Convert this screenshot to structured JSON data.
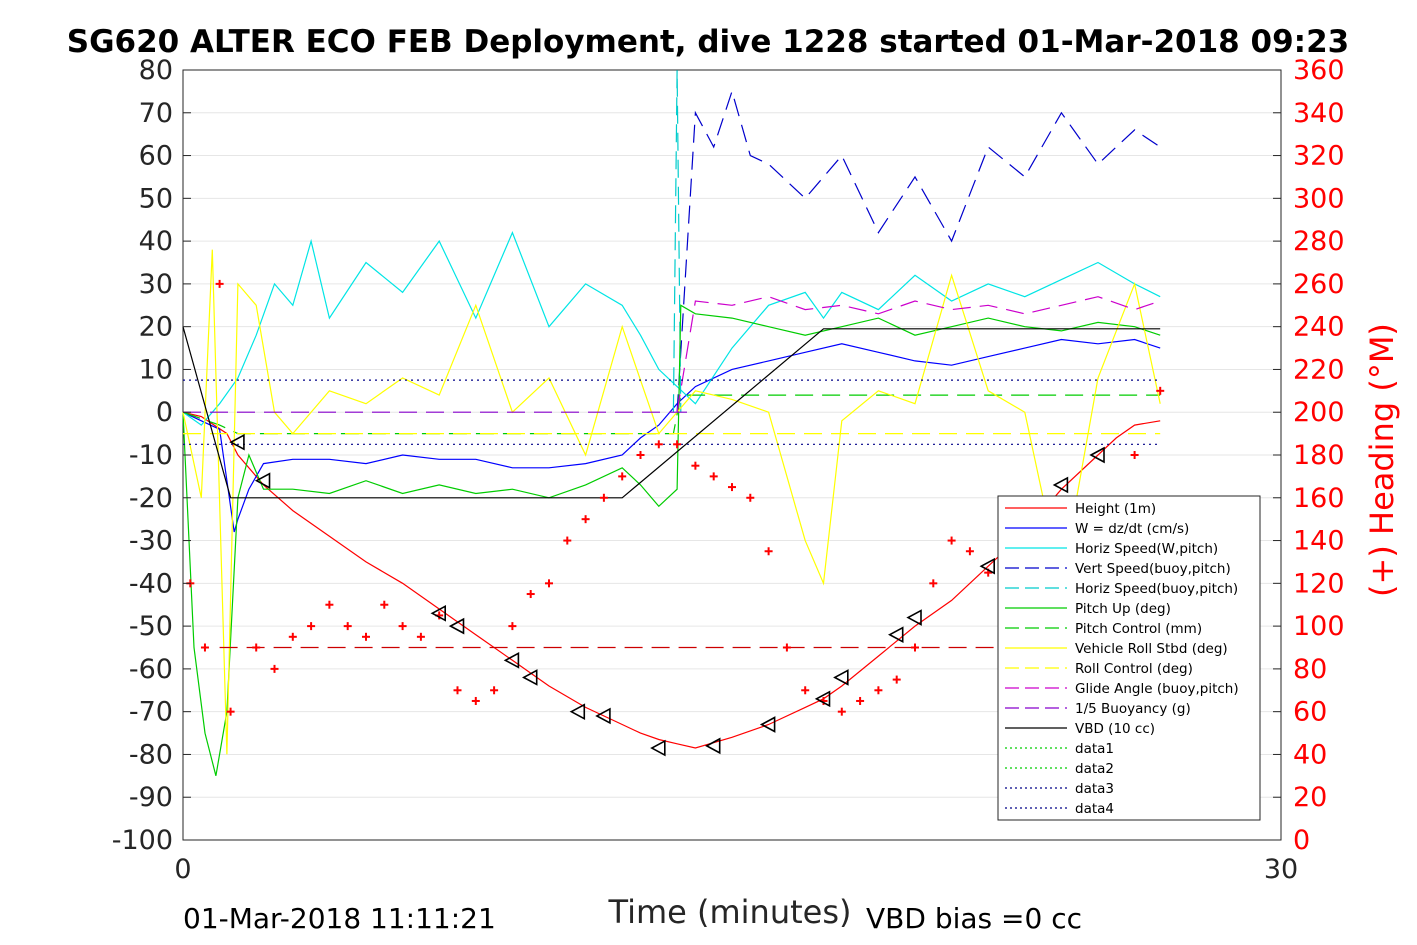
{
  "chart_data": {
    "type": "line",
    "title": "SG620 ALTER ECO FEB Deployment, dive 1228 started 01-Mar-2018 09:23",
    "xlabel": "Time (minutes)",
    "ylabel": "",
    "ylabel_right": "(+) Heading (°M)",
    "xlim": [
      0,
      30
    ],
    "ylim": [
      -100,
      80
    ],
    "ylim_right": [
      0,
      360
    ],
    "x_ticks": [
      "0",
      "30"
    ],
    "y_ticks": [
      "80",
      "70",
      "60",
      "50",
      "40",
      "30",
      "20",
      "10",
      "0",
      "-10",
      "-20",
      "-30",
      "-40",
      "-50",
      "-60",
      "-70",
      "-80",
      "-90",
      "-100"
    ],
    "y_ticks_right": [
      "360",
      "340",
      "320",
      "300",
      "280",
      "260",
      "240",
      "220",
      "200",
      "180",
      "160",
      "140",
      "120",
      "100",
      "80",
      "60",
      "40",
      "20",
      "0"
    ],
    "grid": true,
    "legend_position": "lower-right",
    "footer_left": "01-Mar-2018 11:11:21",
    "footer_right": "VBD bias =0 cc",
    "series": [
      {
        "name": "Height (1m)",
        "color": "#ff0000",
        "style": "solid",
        "x": [
          0,
          0.5,
          1.2,
          1.5,
          2.2,
          3,
          4,
          5,
          6,
          7,
          8,
          9,
          10,
          11,
          12,
          12.5,
          13,
          13.5,
          14,
          15,
          16,
          17,
          17.5,
          18,
          19,
          20,
          21,
          22,
          23,
          24,
          25,
          25.5,
          26,
          26.7
        ],
        "y": [
          0,
          -1,
          -5,
          -10,
          -17,
          -23,
          -29,
          -35,
          -40,
          -46,
          -52,
          -58,
          -64,
          -69,
          -73,
          -75,
          -76.5,
          -77.5,
          -78.5,
          -76,
          -73,
          -69,
          -67,
          -64,
          -57,
          -50,
          -44,
          -36,
          -28,
          -18,
          -10,
          -6,
          -3,
          -2
        ]
      },
      {
        "name": "W = dz/dt (cm/s)",
        "color": "#0000ff",
        "style": "solid",
        "x": [
          0,
          0.5,
          1,
          1.4,
          1.5,
          1.8,
          2.2,
          3,
          4,
          5,
          6,
          7,
          8,
          9,
          10,
          11,
          12,
          12.5,
          13,
          13.5,
          14,
          15,
          16,
          17,
          18,
          19,
          20,
          21,
          22,
          23,
          24,
          25,
          26,
          26.7
        ],
        "y": [
          0,
          -2,
          -4,
          -28,
          -25,
          -18,
          -12,
          -11,
          -11,
          -12,
          -10,
          -11,
          -11,
          -13,
          -13,
          -12,
          -10,
          -6,
          -3,
          2,
          6,
          10,
          12,
          14,
          16,
          14,
          12,
          11,
          13,
          15,
          17,
          16,
          17,
          15
        ]
      },
      {
        "name": "Horiz Speed(W,pitch)",
        "color": "#00e5e5",
        "style": "solid",
        "x": [
          0,
          0.5,
          1,
          1.5,
          2,
          2.5,
          3,
          3.5,
          4,
          5,
          6,
          7,
          8,
          9,
          10,
          11,
          12,
          12.5,
          13,
          13.5,
          14,
          15,
          16,
          17,
          17.5,
          18,
          19,
          20,
          21,
          22,
          23,
          24,
          25,
          26,
          26.7
        ],
        "y": [
          0,
          -3,
          2,
          8,
          18,
          30,
          25,
          40,
          22,
          35,
          28,
          40,
          22,
          42,
          20,
          30,
          25,
          18,
          10,
          6,
          2,
          15,
          25,
          28,
          22,
          28,
          24,
          32,
          26,
          30,
          27,
          31,
          35,
          30,
          27
        ]
      },
      {
        "name": "Vert Speed(buoy,pitch)",
        "color": "#0000cc",
        "style": "dashed",
        "x": [
          13.5,
          14,
          14.5,
          15,
          15.5,
          16,
          17,
          18,
          19,
          20,
          21,
          22,
          23,
          24,
          25,
          26,
          26.7
        ],
        "y": [
          0,
          70,
          62,
          75,
          60,
          58,
          50,
          60,
          42,
          55,
          40,
          62,
          55,
          70,
          58,
          66,
          62
        ]
      },
      {
        "name": "Horiz Speed(buoy,pitch)",
        "color": "#00cccc",
        "style": "dashed",
        "x": [
          13.4,
          13.5,
          13.6
        ],
        "y": [
          0,
          80,
          0
        ]
      },
      {
        "name": "Pitch Up (deg)",
        "color": "#00cc00",
        "style": "solid",
        "x": [
          0,
          0.3,
          0.6,
          0.9,
          1.2,
          1.5,
          1.8,
          2.2,
          3,
          4,
          5,
          6,
          7,
          8,
          9,
          10,
          11,
          12,
          12.5,
          13,
          13.5,
          13.6,
          14,
          15,
          16,
          17,
          18,
          19,
          20,
          21,
          22,
          23,
          24,
          25,
          26,
          26.7
        ],
        "y": [
          0,
          -55,
          -75,
          -85,
          -70,
          -20,
          -10,
          -18,
          -18,
          -19,
          -16,
          -19,
          -17,
          -19,
          -18,
          -20,
          -17,
          -13,
          -17,
          -22,
          -18,
          25,
          23,
          22,
          20,
          18,
          20,
          22,
          18,
          20,
          22,
          20,
          19,
          21,
          20,
          18
        ]
      },
      {
        "name": "Pitch Control (mm)",
        "color": "#00cc00",
        "style": "dashed",
        "x": [
          0,
          1,
          1.5,
          13.4,
          13.6,
          26.7
        ],
        "y": [
          0,
          -3,
          -5,
          -5,
          4,
          4
        ]
      },
      {
        "name": "Vehicle Roll Stbd (deg)",
        "color": "#ffff00",
        "style": "solid",
        "x": [
          0,
          0.5,
          0.8,
          1.2,
          1.5,
          2,
          2.5,
          3,
          4,
          5,
          6,
          7,
          8,
          9,
          10,
          11,
          12,
          13,
          14,
          15,
          16,
          17,
          17.5,
          18,
          19,
          20,
          21,
          22,
          23,
          24,
          25,
          26,
          26.7
        ],
        "y": [
          0,
          -20,
          38,
          -80,
          30,
          25,
          0,
          -5,
          5,
          2,
          8,
          4,
          25,
          0,
          8,
          -10,
          20,
          -5,
          5,
          3,
          0,
          -30,
          -40,
          -2,
          5,
          2,
          32,
          5,
          0,
          -40,
          8,
          30,
          2
        ]
      },
      {
        "name": "Roll Control (deg)",
        "color": "#ffff00",
        "style": "dashed",
        "x": [
          0,
          26.7
        ],
        "y": [
          -5,
          -5
        ]
      },
      {
        "name": "Glide Angle (buoy,pitch)",
        "color": "#cc00cc",
        "style": "dashed",
        "x": [
          13.5,
          14,
          15,
          16,
          17,
          18,
          19,
          20,
          21,
          22,
          23,
          24,
          25,
          26,
          26.7
        ],
        "y": [
          0,
          26,
          25,
          27,
          24,
          25,
          23,
          26,
          24,
          25,
          23,
          25,
          27,
          24,
          26
        ]
      },
      {
        "name": "1/5 Buoyancy (g)",
        "color": "#8800cc",
        "style": "dashed",
        "x": [
          0,
          14
        ],
        "y": [
          0,
          0
        ]
      },
      {
        "name": "VBD (10 cc)",
        "color": "#000000",
        "style": "solid",
        "x": [
          0,
          1.3,
          12,
          17.5,
          26.7
        ],
        "y": [
          20,
          -20,
          -20,
          19.5,
          19.5
        ]
      },
      {
        "name": "data1",
        "color": "#00cc00",
        "style": "dotted",
        "x": [],
        "y": []
      },
      {
        "name": "data2",
        "color": "#00cc00",
        "style": "dotted",
        "x": [],
        "y": []
      },
      {
        "name": "data3",
        "color": "#000088",
        "style": "dotted",
        "x": [
          0,
          26.7
        ],
        "y": [
          7.5,
          7.5
        ]
      },
      {
        "name": "data4",
        "color": "#000088",
        "style": "dotted",
        "x": [
          0,
          26.7
        ],
        "y": [
          -7.5,
          -7.5
        ]
      }
    ],
    "reference_lines": [
      {
        "color": "#cc0000",
        "style": "dashed",
        "x": [
          1,
          26.7
        ],
        "y": [
          -55,
          -55
        ]
      }
    ],
    "heading_points": {
      "color": "#ff0000",
      "marker": "+",
      "axis": "right",
      "x": [
        0.2,
        0.6,
        1,
        1.3,
        2,
        2.5,
        3,
        3.5,
        4,
        4.5,
        5,
        5.5,
        6,
        6.5,
        7,
        7.5,
        8,
        8.5,
        9,
        9.5,
        10,
        10.5,
        11,
        11.5,
        12,
        12.5,
        13,
        13.5,
        14,
        14.5,
        15,
        15.5,
        16,
        16.5,
        17,
        17.5,
        18,
        18.5,
        19,
        19.5,
        20,
        20.5,
        21,
        21.5,
        22,
        22.5,
        23,
        23.5,
        24,
        24.5,
        25,
        25.5,
        26,
        26.7
      ],
      "y": [
        120,
        90,
        260,
        60,
        90,
        80,
        95,
        100,
        110,
        100,
        95,
        110,
        100,
        95,
        105,
        70,
        65,
        70,
        100,
        115,
        120,
        140,
        150,
        160,
        170,
        180,
        185,
        185,
        175,
        170,
        165,
        160,
        135,
        90,
        70,
        65,
        60,
        65,
        70,
        75,
        90,
        120,
        140,
        135,
        125,
        110,
        70,
        65,
        60,
        70,
        80,
        90,
        180,
        210
      ]
    },
    "triangle_markers": {
      "x": [
        1.5,
        2.2,
        7,
        7.5,
        9,
        9.5,
        10.8,
        11.5,
        13,
        14.5,
        16,
        17.5,
        18,
        19.5,
        20,
        22,
        23,
        24,
        25
      ],
      "y": [
        -7,
        -16,
        -47,
        -50,
        -58,
        -62,
        -70,
        -71,
        -78.5,
        -78,
        -73,
        -67,
        -62,
        -52,
        -48,
        -36,
        -32,
        -17,
        -10
      ]
    }
  }
}
